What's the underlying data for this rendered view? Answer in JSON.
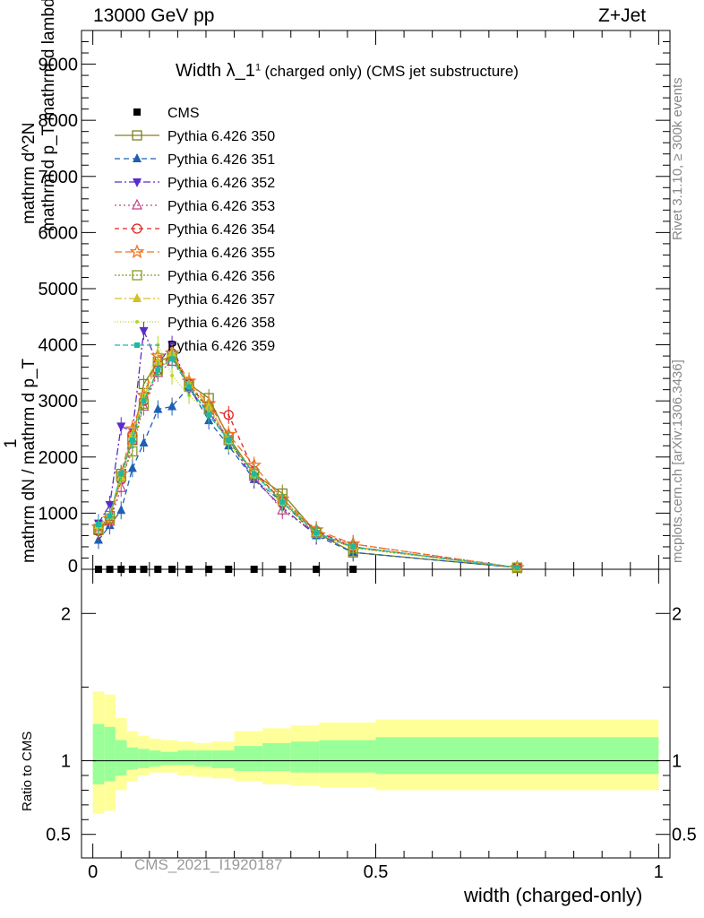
{
  "header": {
    "energy_label": "13000 GeV pp",
    "process_label": "Z+Jet"
  },
  "side_labels": {
    "rivet": "Rivet 3.1.10, ≥ 300k events",
    "mcplots": "mcplots.cern.ch [arXiv:1306.3436]"
  },
  "y_label_main": {
    "numerator_line1": "1",
    "denominator_line1": "mathrm dN / mathrm d p_T",
    "numerator_line2": "mathrm d^2N",
    "denominator_line2": "mathrm d p_T mathrm d lambda"
  },
  "colors": {
    "yellow_band": "#ffff99",
    "green_band": "#99ff99"
  },
  "chart_data": [
    {
      "type": "line",
      "panel": "main",
      "title": "Width λ_1^1 (charged only) (CMS jet substructure)",
      "title_main": "Width λ_1",
      "title_sup": "1",
      "title_rest": "(charged only) (CMS jet substructure)",
      "xlabel": "width (charged-only)",
      "xlim": [
        -0.02,
        1.02
      ],
      "ylim": [
        0,
        9600
      ],
      "yticks": [
        0,
        1000,
        2000,
        3000,
        4000,
        5000,
        6000,
        7000,
        8000,
        9000
      ],
      "ytick_labels": [
        "0",
        "1000",
        "2000",
        "3000",
        "4000",
        "5000",
        "6000",
        "7000",
        "8000",
        "9000"
      ],
      "watermark": "CMS_2021_I1920187",
      "x": [
        0.01,
        0.03,
        0.05,
        0.07,
        0.09,
        0.115,
        0.14,
        0.17,
        0.205,
        0.24,
        0.285,
        0.335,
        0.395,
        0.46,
        0.75
      ],
      "series": [
        {
          "name": "CMS",
          "color": "#000000",
          "marker": "filled-square",
          "dash": "none",
          "values": [
            0,
            0,
            0,
            0,
            0,
            0,
            0,
            0,
            0,
            0,
            0,
            0,
            0,
            0,
            0
          ]
        },
        {
          "name": "Pythia 6.426 350",
          "color": "#808020",
          "marker": "open-square",
          "dash": "solid",
          "values": [
            700,
            950,
            1700,
            2300,
            3300,
            3700,
            3800,
            3300,
            3050,
            2350,
            1700,
            1350,
            650,
            300,
            30
          ]
        },
        {
          "name": "Pythia 6.426 351",
          "color": "#1e5fb4",
          "marker": "filled-triangle",
          "dash": "6,4",
          "values": [
            520,
            780,
            1050,
            1800,
            2250,
            2850,
            2900,
            3250,
            2650,
            2200,
            1600,
            1200,
            600,
            300,
            30
          ]
        },
        {
          "name": "Pythia 6.426 352",
          "color": "#5a2cc8",
          "marker": "filled-tri-down",
          "dash": "8,3,2,3",
          "values": [
            820,
            1150,
            2550,
            2450,
            4250,
            3650,
            4000,
            3200,
            2800,
            2300,
            1600,
            1100,
            600,
            400,
            30
          ]
        },
        {
          "name": "Pythia 6.426 353",
          "color": "#c0408a",
          "marker": "open-triangle",
          "dash": "2,3",
          "values": [
            700,
            850,
            1450,
            2300,
            2900,
            3500,
            3700,
            3300,
            2900,
            2300,
            1650,
            1050,
            650,
            450,
            30
          ]
        },
        {
          "name": "Pythia 6.426 354",
          "color": "#e02020",
          "marker": "open-circle",
          "dash": "5,4",
          "values": [
            680,
            880,
            1600,
            2400,
            3000,
            3550,
            3850,
            3300,
            2850,
            2750,
            1750,
            1200,
            680,
            400,
            30
          ]
        },
        {
          "name": "Pythia 6.426 355",
          "color": "#f07020",
          "marker": "star",
          "dash": "8,4",
          "values": [
            750,
            900,
            1700,
            2500,
            3100,
            3800,
            3850,
            3350,
            2950,
            2400,
            1850,
            1250,
            700,
            450,
            30
          ]
        },
        {
          "name": "Pythia 6.426 356",
          "color": "#8a9a20",
          "marker": "open-square",
          "dash": "2,2",
          "values": [
            720,
            900,
            1650,
            2100,
            2950,
            3550,
            3800,
            3250,
            2850,
            2300,
            1700,
            1250,
            650,
            380,
            30
          ]
        },
        {
          "name": "Pythia 6.426 357",
          "color": "#d4c020",
          "marker": "filled-triangle",
          "dash": "8,3,2,3",
          "values": [
            780,
            950,
            1650,
            2400,
            3050,
            3700,
            3850,
            3300,
            2900,
            2300,
            1700,
            1200,
            650,
            400,
            30
          ]
        },
        {
          "name": "Pythia 6.426 358",
          "color": "#b8d820",
          "marker": "small-dot",
          "dash": "1,2",
          "values": [
            760,
            920,
            1600,
            2350,
            3100,
            4000,
            3450,
            3100,
            2800,
            2250,
            1650,
            1150,
            640,
            380,
            30
          ]
        },
        {
          "name": "Pythia 6.426 359",
          "color": "#20b8a0",
          "marker": "small-square",
          "dash": "6,3",
          "values": [
            800,
            950,
            1700,
            2300,
            3000,
            3550,
            3750,
            3250,
            2750,
            2300,
            1700,
            1200,
            650,
            400,
            30
          ]
        }
      ]
    },
    {
      "type": "area",
      "panel": "ratio",
      "ylabel": "Ratio to CMS",
      "xlabel": "width (charged-only)",
      "xlim": [
        -0.02,
        1.02
      ],
      "ylim": [
        0.34,
        2.3
      ],
      "yticks": [
        0.5,
        1,
        2
      ],
      "ytick_labels": [
        "0.5",
        "1",
        "2"
      ],
      "xticks": [
        0,
        0.5,
        1
      ],
      "xtick_labels": [
        "0",
        "0.5",
        "1"
      ],
      "reference_line": 1,
      "bins": [
        0,
        0.02,
        0.04,
        0.06,
        0.08,
        0.1,
        0.12,
        0.15,
        0.18,
        0.21,
        0.25,
        0.3,
        0.35,
        0.4,
        0.5,
        1.0
      ],
      "yellow_lo": [
        0.64,
        0.66,
        0.8,
        0.86,
        0.9,
        0.92,
        0.92,
        0.9,
        0.89,
        0.88,
        0.86,
        0.84,
        0.83,
        0.82,
        0.8
      ],
      "yellow_hi": [
        1.47,
        1.45,
        1.29,
        1.2,
        1.17,
        1.15,
        1.14,
        1.13,
        1.12,
        1.13,
        1.2,
        1.22,
        1.24,
        1.26,
        1.28
      ],
      "green_lo": [
        0.84,
        0.86,
        0.9,
        0.94,
        0.95,
        0.96,
        0.97,
        0.97,
        0.96,
        0.95,
        0.93,
        0.93,
        0.92,
        0.92,
        0.91
      ],
      "green_hi": [
        1.25,
        1.23,
        1.14,
        1.09,
        1.08,
        1.07,
        1.06,
        1.07,
        1.07,
        1.07,
        1.1,
        1.12,
        1.13,
        1.14,
        1.16
      ]
    }
  ]
}
